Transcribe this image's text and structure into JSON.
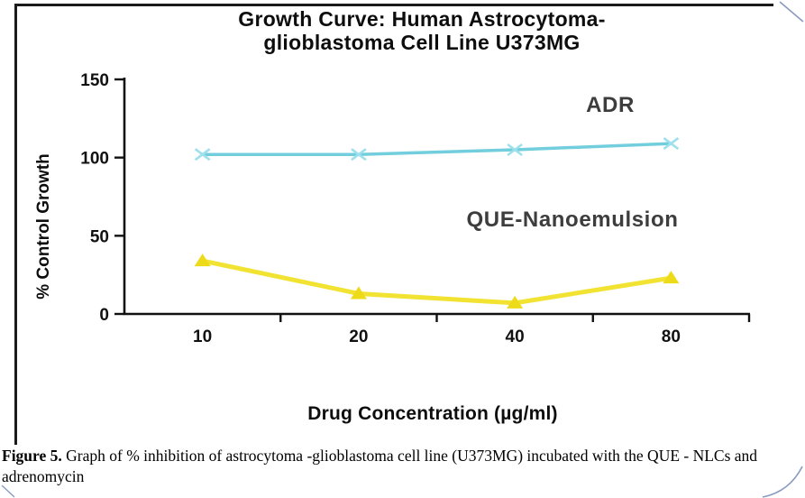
{
  "figure": {
    "title_lines": [
      "Growth Curve: Human Astrocytoma-",
      "glioblastoma Cell Line U373MG"
    ]
  },
  "chart_data": {
    "type": "line",
    "title": "Growth Curve: Human Astrocytoma-glioblastoma Cell Line U373MG",
    "categories": [
      "10",
      "20",
      "40",
      "80"
    ],
    "series": [
      {
        "name": "ADR",
        "values": [
          102,
          102,
          105,
          109
        ],
        "color": "#72CEDC",
        "marker": "x",
        "marker_color": "#9EE0EC"
      },
      {
        "name": "QUE-Nanoemulsion",
        "values": [
          34,
          13,
          7,
          23
        ],
        "color": "#F2E332",
        "marker": "triangle",
        "marker_color": "#EDDA18"
      }
    ],
    "xlabel": "Drug Concentration (µg/ml)",
    "ylabel": "% Control Growth",
    "ylim": [
      0,
      150
    ],
    "yticks": [
      0,
      50,
      100,
      150
    ],
    "grid": false,
    "legend_position": "inline-annotations",
    "axis_color": "#111111"
  },
  "caption": {
    "label": "Figure 5.",
    "text": " Graph of % inhibition of astrocytoma -glioblastoma cell line (U373MG) incubated with the QUE - NLCs and adrenomycin"
  }
}
